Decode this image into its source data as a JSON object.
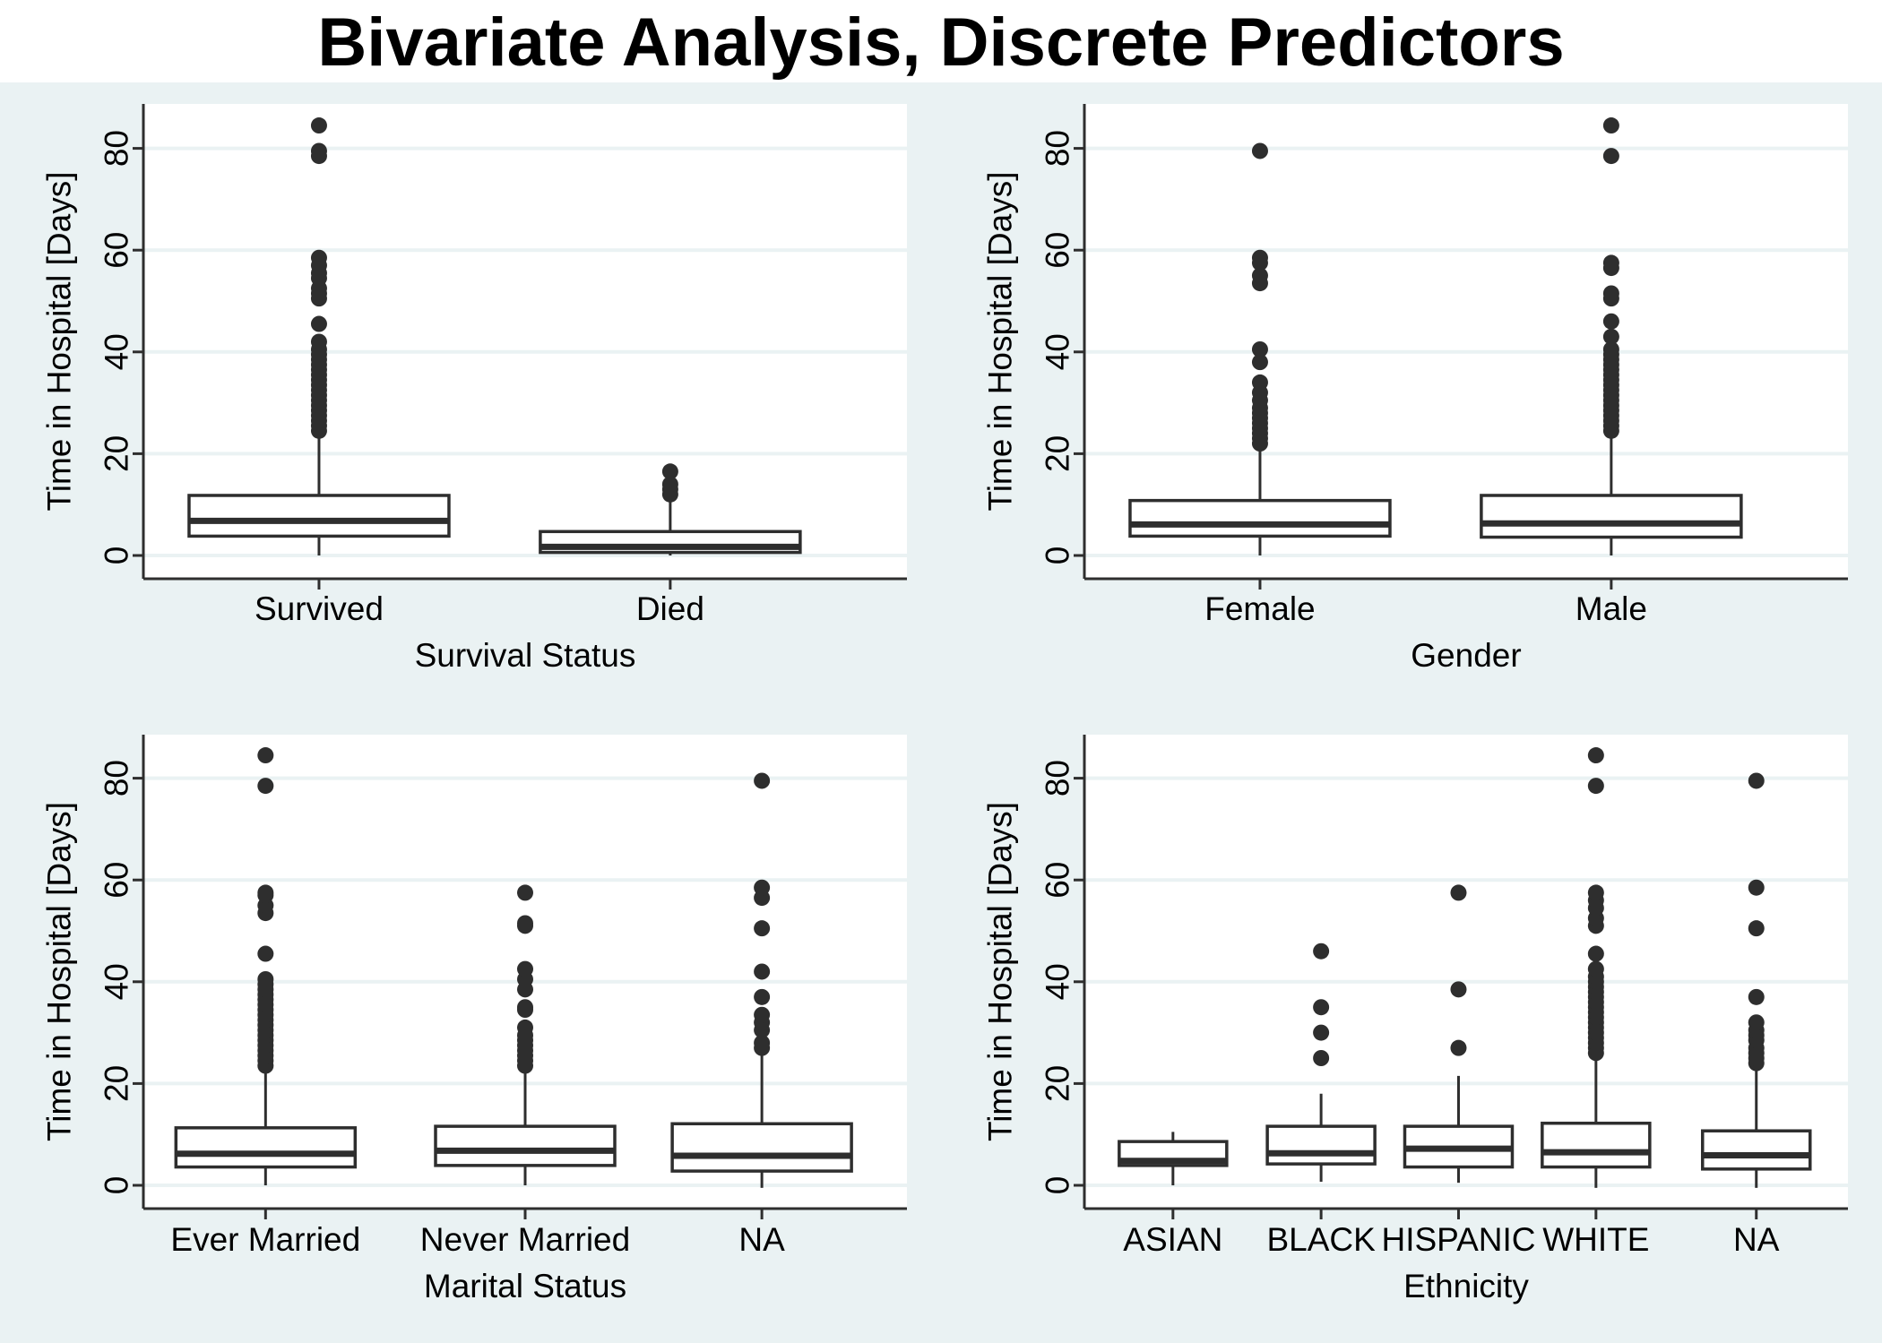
{
  "title": "Bivariate Analysis, Discrete Predictors",
  "colors": {
    "background": "#eaf2f3",
    "plot_background": "#ffffff",
    "gridline": "#eaf2f3",
    "box_fill": "#ffffff",
    "stroke": "#2e2e2e",
    "text": "#000000"
  },
  "chart_data": [
    {
      "type": "box",
      "xlabel": "Survival Status",
      "ylabel": "Time in Hospital [Days]",
      "yticks": [
        0,
        20,
        40,
        60,
        80
      ],
      "ylim": [
        -5,
        88
      ],
      "grid": true,
      "categories": [
        "Survived",
        "Died"
      ],
      "boxes": [
        {
          "q1": 3.8,
          "median": 6.8,
          "q3": 11.8,
          "whisker_low": 0,
          "whisker_high": 23.5,
          "outliers": [
            24.5,
            25.5,
            26.5,
            27.5,
            28.5,
            29.5,
            30.5,
            31.5,
            32.5,
            33.5,
            34.5,
            35.5,
            36.5,
            37.5,
            38.5,
            39.5,
            40.5,
            42,
            45.5,
            50.5,
            51.5,
            52.5,
            54.5,
            55.5,
            57,
            58.5,
            78.5,
            79.5,
            84.5
          ]
        },
        {
          "q1": 0.6,
          "median": 1.7,
          "q3": 4.7,
          "whisker_low": 0,
          "whisker_high": 11,
          "outliers": [
            12,
            13,
            14,
            16.5
          ]
        }
      ]
    },
    {
      "type": "box",
      "xlabel": "Gender",
      "ylabel": "Time in Hospital [Days]",
      "yticks": [
        0,
        20,
        40,
        60,
        80
      ],
      "ylim": [
        -5,
        88
      ],
      "grid": true,
      "categories": [
        "Female",
        "Male"
      ],
      "boxes": [
        {
          "q1": 3.8,
          "median": 6.1,
          "q3": 10.8,
          "whisker_low": 0,
          "whisker_high": 21,
          "outliers": [
            22,
            23,
            24,
            25,
            26,
            27,
            28,
            29,
            30.5,
            32,
            34,
            38,
            40.5,
            53.5,
            55,
            57.5,
            58.5,
            79.5
          ]
        },
        {
          "q1": 3.6,
          "median": 6.3,
          "q3": 11.8,
          "whisker_low": 0,
          "whisker_high": 23.5,
          "outliers": [
            24.5,
            25.5,
            26.5,
            27.5,
            28.5,
            29.5,
            30.5,
            31.5,
            32.5,
            33.5,
            34.5,
            35.5,
            36.5,
            37.5,
            38.5,
            39.5,
            40.5,
            43,
            46,
            50.5,
            51.5,
            56.5,
            57.5,
            78.5,
            84.5
          ]
        }
      ]
    },
    {
      "type": "box",
      "xlabel": "Marital Status",
      "ylabel": "Time in Hospital [Days]",
      "yticks": [
        0,
        20,
        40,
        60,
        80
      ],
      "ylim": [
        -5,
        88
      ],
      "grid": true,
      "categories": [
        "Ever Married",
        "Never Married",
        "NA"
      ],
      "boxes": [
        {
          "q1": 3.6,
          "median": 6.2,
          "q3": 11.3,
          "whisker_low": 0,
          "whisker_high": 22.5,
          "outliers": [
            23.5,
            24.5,
            25.5,
            26.5,
            27.5,
            28.5,
            29.5,
            30.5,
            31.5,
            32.5,
            33.5,
            34.5,
            35.5,
            36.5,
            37.5,
            38.5,
            39.5,
            40.5,
            45.5,
            53.5,
            55,
            57,
            57.5,
            78.5,
            84.5
          ]
        },
        {
          "q1": 3.9,
          "median": 6.8,
          "q3": 11.6,
          "whisker_low": 0,
          "whisker_high": 22.5,
          "outliers": [
            23.5,
            24.5,
            25.5,
            26.5,
            27.5,
            28.5,
            29.5,
            31,
            34.5,
            35,
            38.5,
            40.5,
            42.5,
            51,
            51.5,
            57.5
          ]
        },
        {
          "q1": 2.8,
          "median": 5.8,
          "q3": 12.1,
          "whisker_low": -0.5,
          "whisker_high": 26,
          "outliers": [
            27,
            28,
            30.5,
            32,
            33.5,
            37,
            42,
            50.5,
            56.5,
            58.5,
            79.5
          ]
        }
      ]
    },
    {
      "type": "box",
      "xlabel": "Ethnicity",
      "ylabel": "Time in Hospital [Days]",
      "yticks": [
        0,
        20,
        40,
        60,
        80
      ],
      "ylim": [
        -5,
        88
      ],
      "grid": true,
      "categories": [
        "ASIAN",
        "BLACK",
        "HISPANIC",
        "WHITE",
        "NA"
      ],
      "boxes": [
        {
          "q1": 3.9,
          "median": 4.8,
          "q3": 8.6,
          "whisker_low": 0,
          "whisker_high": 10.5,
          "outliers": []
        },
        {
          "q1": 4.2,
          "median": 6.3,
          "q3": 11.6,
          "whisker_low": 0.7,
          "whisker_high": 18,
          "outliers": [
            25,
            30,
            35,
            46
          ]
        },
        {
          "q1": 3.6,
          "median": 7.2,
          "q3": 11.6,
          "whisker_low": 0.5,
          "whisker_high": 21.5,
          "outliers": [
            27,
            38.5,
            57.5
          ]
        },
        {
          "q1": 3.6,
          "median": 6.5,
          "q3": 12.2,
          "whisker_low": -0.5,
          "whisker_high": 25,
          "outliers": [
            26,
            27,
            28,
            29,
            30,
            31,
            32,
            33,
            34,
            35,
            36,
            37,
            38,
            39,
            40,
            41,
            42.5,
            45.5,
            51,
            52.5,
            54.5,
            56,
            57.5,
            78.5,
            84.5
          ]
        },
        {
          "q1": 3.2,
          "median": 5.9,
          "q3": 10.7,
          "whisker_low": -0.5,
          "whisker_high": 23,
          "outliers": [
            24,
            25,
            26,
            27,
            28.5,
            29.5,
            30.5,
            32,
            37,
            50.5,
            58.5,
            79.5
          ]
        }
      ]
    }
  ]
}
